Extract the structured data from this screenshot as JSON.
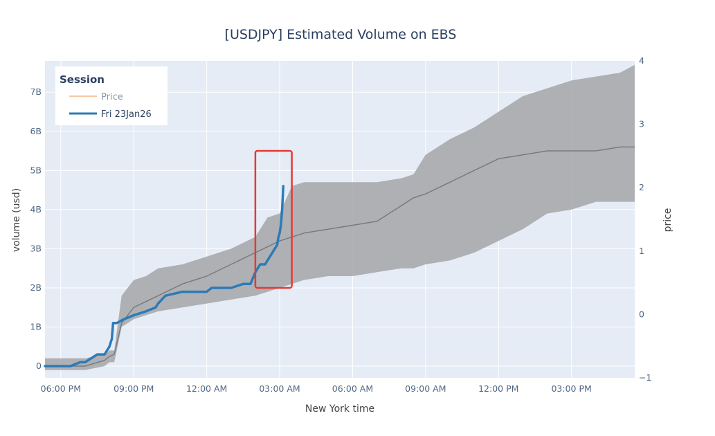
{
  "chart_data": {
    "type": "line",
    "title": "[USDJPY] Estimated Volume on EBS",
    "xlabel": "New York time",
    "ylabel": "volume (usd)",
    "y2label": "price",
    "x_unit": "hours after 17:00 ET",
    "xlim": [
      0.35,
      24.6
    ],
    "ylim": [
      -0.0003,
      0.0078
    ],
    "y2lim": [
      -1,
      4
    ],
    "x_ticks": [
      {
        "x": 1,
        "label": "06:00 PM"
      },
      {
        "x": 4,
        "label": "09:00 PM"
      },
      {
        "x": 7,
        "label": "12:00 AM"
      },
      {
        "x": 10,
        "label": "03:00 AM"
      },
      {
        "x": 13,
        "label": "06:00 AM"
      },
      {
        "x": 16,
        "label": "09:00 AM"
      },
      {
        "x": 19,
        "label": "12:00 PM"
      },
      {
        "x": 22,
        "label": "03:00 PM"
      }
    ],
    "y_ticks": [
      {
        "v": 0,
        "label": "0"
      },
      {
        "v": 0.001,
        "label": "1B"
      },
      {
        "v": 0.002,
        "label": "2B"
      },
      {
        "v": 0.003,
        "label": "3B"
      },
      {
        "v": 0.004,
        "label": "4B"
      },
      {
        "v": 0.005,
        "label": "5B"
      },
      {
        "v": 0.006,
        "label": "6B"
      },
      {
        "v": 0.007,
        "label": "7B"
      }
    ],
    "y2_ticks": [
      {
        "v": -1,
        "label": "−1"
      },
      {
        "v": 0,
        "label": "0"
      },
      {
        "v": 1,
        "label": "1"
      },
      {
        "v": 2,
        "label": "2"
      },
      {
        "v": 3,
        "label": "3"
      },
      {
        "v": 4,
        "label": "4"
      }
    ],
    "legend": {
      "title": "Session",
      "position": "top-left",
      "items": [
        {
          "name": "Price",
          "color": "#f4c7a1"
        },
        {
          "name": "Fri 23Jan26",
          "color": "#2c7bb6"
        }
      ]
    },
    "band": {
      "color": "#a7aaad",
      "x": [
        0.35,
        2.0,
        2.8,
        3.0,
        3.2,
        3.5,
        4.0,
        4.5,
        5.0,
        6.0,
        7.0,
        8.0,
        9.0,
        9.5,
        10.0,
        10.5,
        11.0,
        12.0,
        13.0,
        14.0,
        15.0,
        15.5,
        16.0,
        17.0,
        18.0,
        19.0,
        20.0,
        21.0,
        22.0,
        23.0,
        24.0,
        24.6
      ],
      "upper": [
        0.0002,
        0.0002,
        0.0003,
        0.0004,
        0.0004,
        0.0018,
        0.0022,
        0.0023,
        0.0025,
        0.0026,
        0.0028,
        0.003,
        0.0033,
        0.0038,
        0.0039,
        0.0046,
        0.0047,
        0.0047,
        0.0047,
        0.0047,
        0.0048,
        0.0049,
        0.0054,
        0.0058,
        0.0061,
        0.0065,
        0.0069,
        0.0071,
        0.0073,
        0.0074,
        0.0075,
        0.0077
      ],
      "lower": [
        -0.0001,
        -0.0001,
        0.0,
        0.0001,
        0.0001,
        0.001,
        0.0012,
        0.0013,
        0.0014,
        0.0015,
        0.0016,
        0.0017,
        0.0018,
        0.0019,
        0.002,
        0.0021,
        0.0022,
        0.0023,
        0.0023,
        0.0024,
        0.0025,
        0.0025,
        0.0026,
        0.0027,
        0.0029,
        0.0032,
        0.0035,
        0.0039,
        0.004,
        0.0042,
        0.0042,
        0.0042
      ]
    },
    "series": [
      {
        "name": "median",
        "color": "#777b80",
        "x": [
          0.35,
          2.0,
          2.8,
          3.0,
          3.2,
          3.5,
          4.0,
          5.0,
          6.0,
          7.0,
          8.0,
          9.0,
          10.0,
          11.0,
          12.0,
          13.0,
          14.0,
          14.5,
          15.0,
          15.5,
          16.0,
          17.0,
          18.0,
          19.0,
          20.0,
          21.0,
          22.0,
          23.0,
          24.0,
          24.6
        ],
        "y": [
          0.0,
          0.0,
          0.00015,
          0.00025,
          0.0003,
          0.0011,
          0.0015,
          0.0018,
          0.0021,
          0.0023,
          0.0026,
          0.0029,
          0.0032,
          0.0034,
          0.0035,
          0.0036,
          0.0037,
          0.0039,
          0.0041,
          0.0043,
          0.0044,
          0.0047,
          0.005,
          0.0053,
          0.0054,
          0.0055,
          0.0055,
          0.0055,
          0.0056,
          0.0056
        ]
      },
      {
        "name": "Fri 23Jan26",
        "color": "#2c7bb6",
        "x": [
          0.35,
          1.4,
          1.8,
          2.0,
          2.5,
          2.8,
          3.0,
          3.1,
          3.15,
          3.3,
          3.6,
          4.0,
          4.5,
          4.9,
          5.0,
          5.3,
          6.0,
          7.0,
          7.2,
          8.0,
          8.5,
          8.8,
          9.0,
          9.2,
          9.4,
          9.6,
          9.8,
          9.9,
          9.95,
          10.0,
          10.05,
          10.1,
          10.15
        ],
        "y": [
          0.0,
          0.0,
          0.0001,
          0.0001,
          0.0003,
          0.0003,
          0.0005,
          0.0007,
          0.0011,
          0.0011,
          0.0012,
          0.0013,
          0.0014,
          0.0015,
          0.0016,
          0.0018,
          0.0019,
          0.0019,
          0.002,
          0.002,
          0.0021,
          0.0021,
          0.0024,
          0.0026,
          0.0026,
          0.0028,
          0.003,
          0.0031,
          0.0033,
          0.0034,
          0.0036,
          0.004,
          0.0046
        ]
      }
    ],
    "highlight": {
      "color": "#e53935",
      "x": [
        9.0,
        10.5
      ],
      "y": [
        0.002,
        0.0055
      ]
    }
  }
}
